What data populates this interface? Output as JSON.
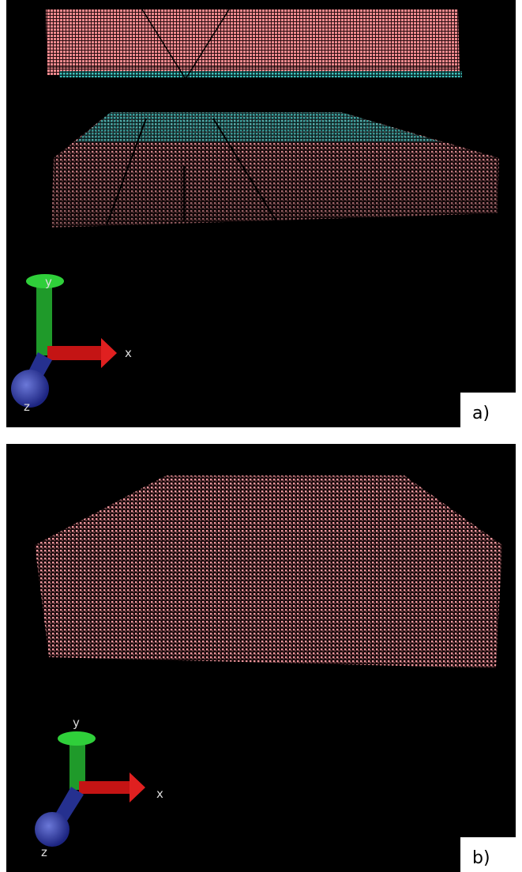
{
  "panels": [
    {
      "label": "a)",
      "axes": {
        "x": "x",
        "y": "y",
        "z": "z"
      }
    },
    {
      "label": "b)",
      "axes": {
        "x": "x",
        "y": "y",
        "z": "z"
      }
    }
  ]
}
